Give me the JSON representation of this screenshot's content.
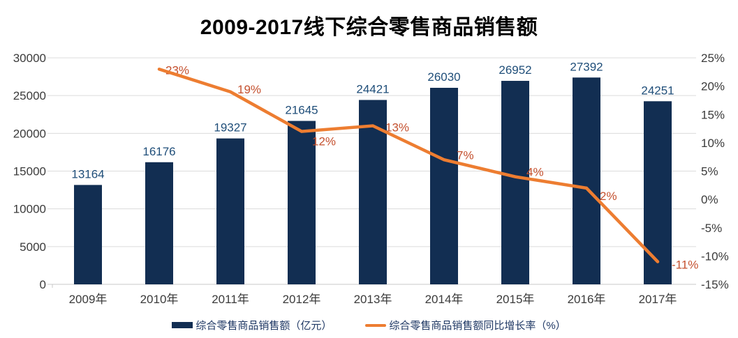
{
  "title": "2009-2017线下综合零售商品销售额",
  "legend": {
    "bars_label": "综合零售商品销售额（亿元）",
    "line_label": "综合零售商品销售额同比增长率（%）"
  },
  "colors": {
    "bar": "#122E52",
    "bar_label": "#1F4E79",
    "line": "#ED7D31",
    "line_label": "#C4502E",
    "axis_text": "#3B3B3B",
    "gridline": "#DCDCDC",
    "axis_line": "#C9C9C9",
    "legend_text": "#1F3864"
  },
  "chart_data": {
    "type": "bar+line",
    "title": "2009-2017线下综合零售商品销售额",
    "xlabel": "",
    "ylabel": "",
    "grid": true,
    "legend_position": "bottom",
    "categories": [
      "2009年",
      "2010年",
      "2011年",
      "2012年",
      "2013年",
      "2014年",
      "2015年",
      "2016年",
      "2017年"
    ],
    "series": [
      {
        "name": "综合零售商品销售额（亿元）",
        "type": "bar",
        "axis": "left",
        "values": [
          13164,
          16176,
          19327,
          21645,
          24421,
          26030,
          26952,
          27392,
          24251
        ],
        "labels": [
          "13164",
          "16176",
          "19327",
          "21645",
          "24421",
          "26030",
          "26952",
          "27392",
          "24251"
        ]
      },
      {
        "name": "综合零售商品销售额同比增长率（%）",
        "type": "line",
        "axis": "right",
        "values": [
          null,
          23,
          19,
          12,
          13,
          7,
          4,
          2,
          -11
        ],
        "labels": [
          "",
          "23%",
          "19%",
          "12%",
          "13%",
          "7%",
          "4%",
          "2%",
          "-11%"
        ]
      }
    ],
    "left_axis": {
      "min": 0,
      "max": 30000,
      "step": 5000,
      "tick_labels": [
        "0",
        "5000",
        "10000",
        "15000",
        "20000",
        "25000",
        "30000"
      ]
    },
    "right_axis": {
      "min": -15,
      "max": 25,
      "step": 5,
      "tick_labels": [
        "-15%",
        "-10%",
        "-5%",
        "0%",
        "5%",
        "10%",
        "15%",
        "20%",
        "25%"
      ]
    }
  }
}
